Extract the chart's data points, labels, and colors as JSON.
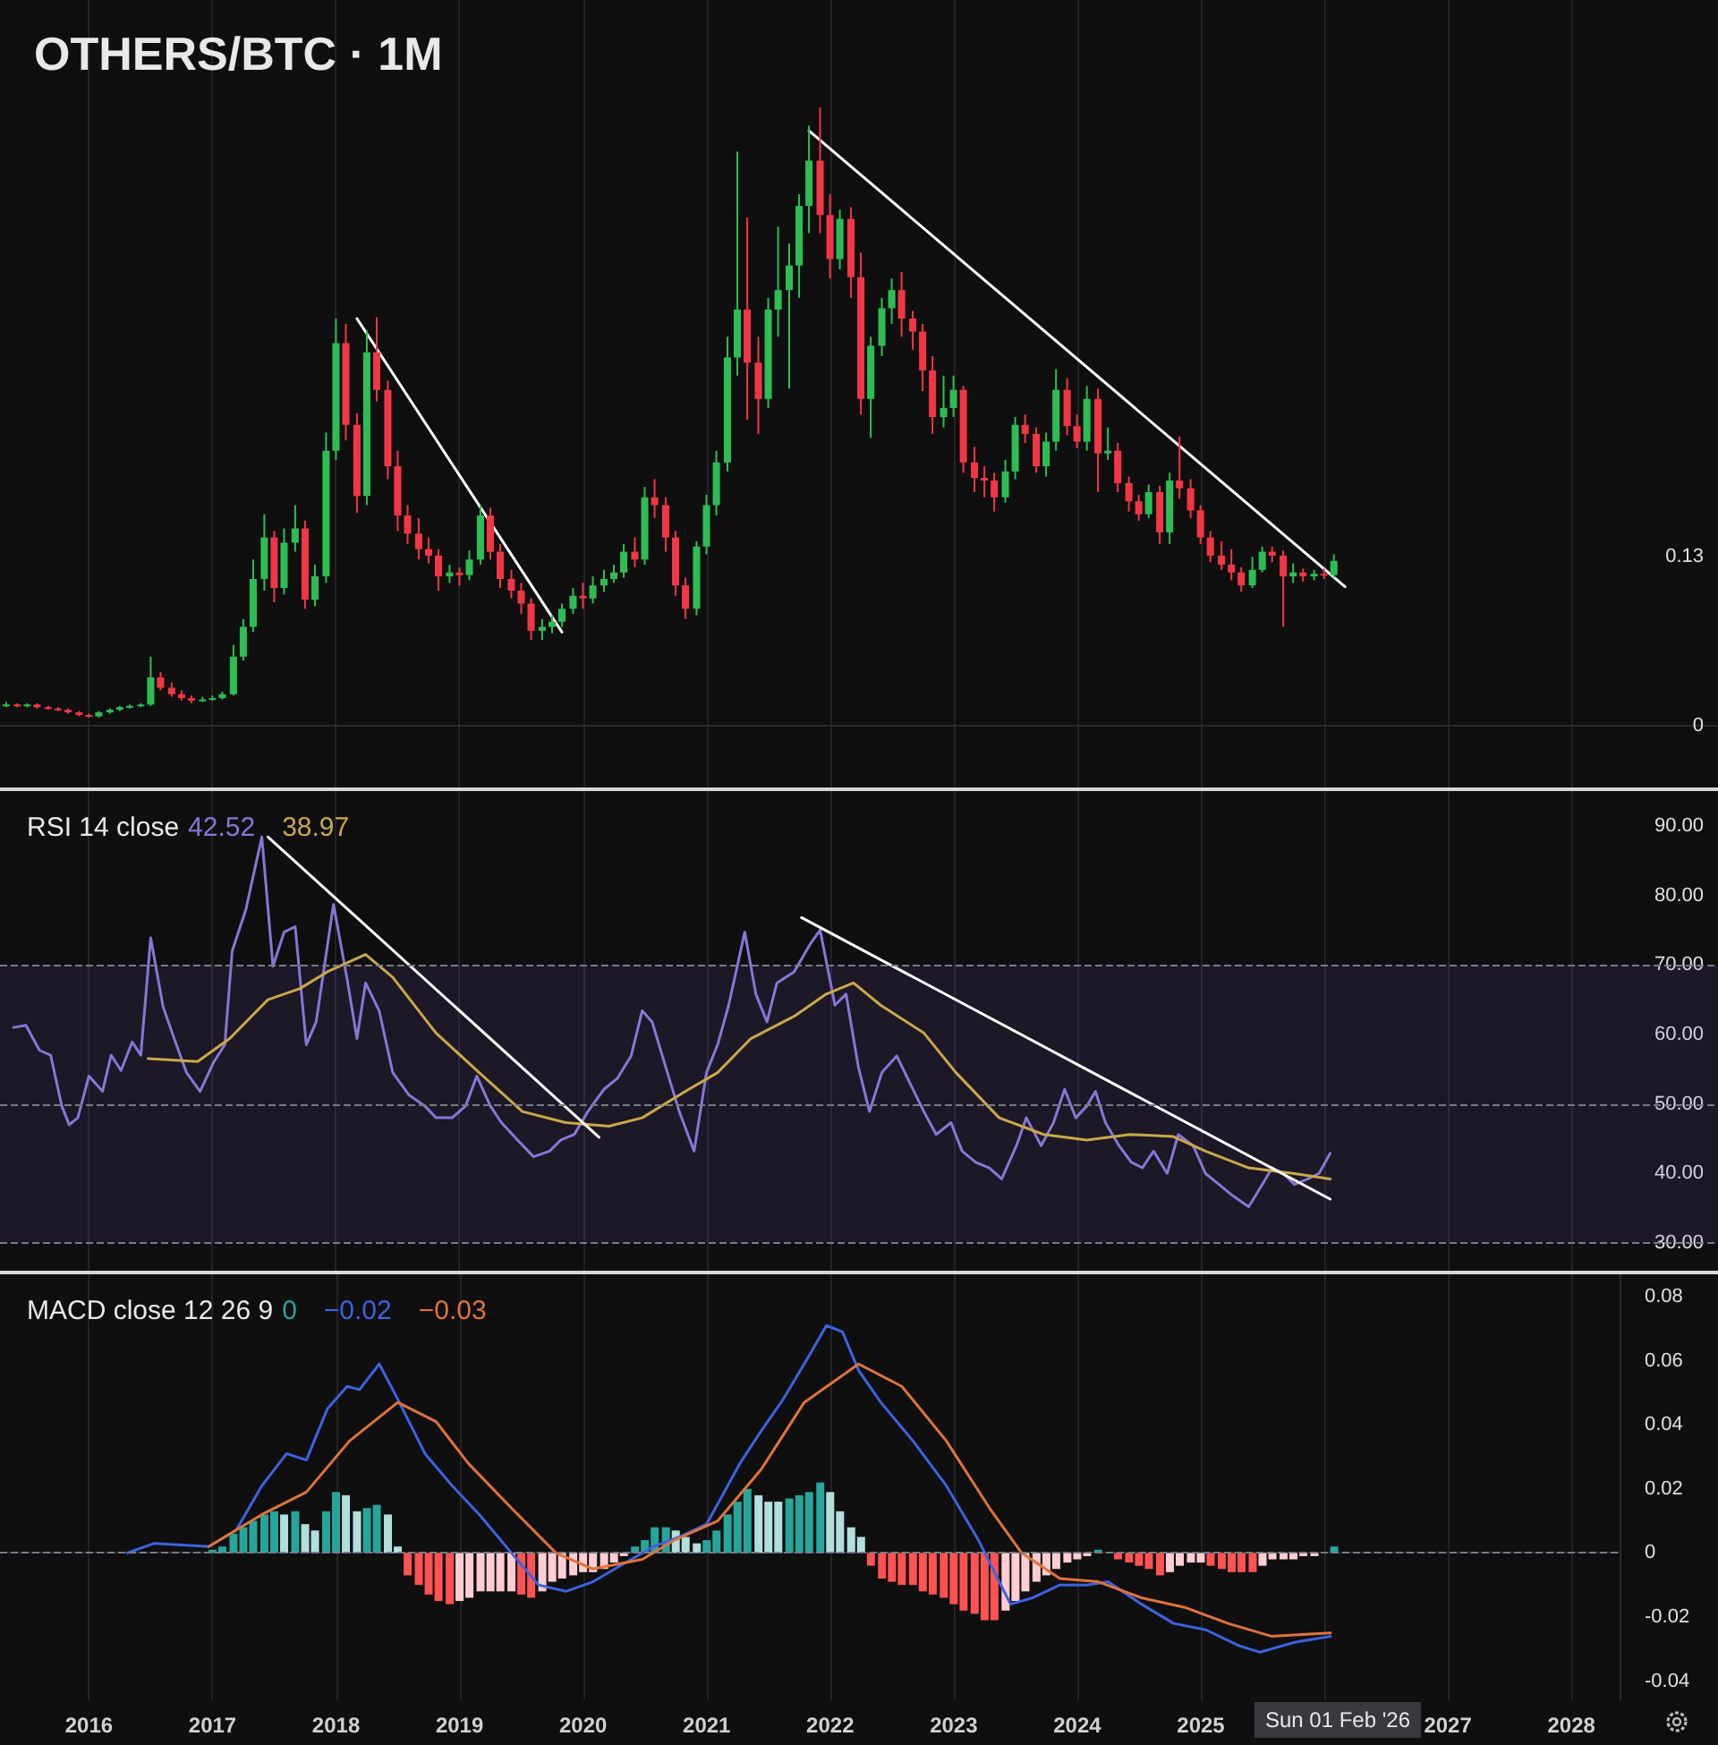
{
  "chart_data": [
    {
      "type": "candlestick",
      "title": "OTHERS/BTC · 1M",
      "xlim": [
        2015.28,
        2029.19
      ],
      "xticks": [
        2016,
        2017,
        2018,
        2019,
        2020,
        2021,
        2022,
        2023,
        2024,
        2025,
        2026,
        2027,
        2028
      ],
      "ylim": [
        -0.048,
        0.56
      ],
      "yticks": [
        0,
        0.13
      ],
      "tick_labels": "y",
      "grid": "x",
      "marker": "none",
      "x": [
        2015.33,
        2015.42,
        2015.5,
        2015.58,
        2015.67,
        2015.75,
        2015.83,
        2015.92,
        2016,
        2016.08,
        2016.17,
        2016.25,
        2016.33,
        2016.42,
        2016.5,
        2016.58,
        2016.67,
        2016.75,
        2016.83,
        2016.92,
        2017,
        2017.08,
        2017.17,
        2017.25,
        2017.33,
        2017.42,
        2017.5,
        2017.58,
        2017.67,
        2017.75,
        2017.83,
        2017.92,
        2018,
        2018.08,
        2018.17,
        2018.25,
        2018.33,
        2018.42,
        2018.5,
        2018.58,
        2018.67,
        2018.75,
        2018.83,
        2018.92,
        2019,
        2019.08,
        2019.17,
        2019.25,
        2019.33,
        2019.42,
        2019.5,
        2019.58,
        2019.67,
        2019.75,
        2019.83,
        2019.92,
        2020,
        2020.08,
        2020.17,
        2020.25,
        2020.33,
        2020.42,
        2020.5,
        2020.58,
        2020.67,
        2020.75,
        2020.83,
        2020.92,
        2021,
        2021.08,
        2021.17,
        2021.25,
        2021.33,
        2021.42,
        2021.5,
        2021.58,
        2021.67,
        2021.75,
        2021.83,
        2021.92,
        2022,
        2022.08,
        2022.17,
        2022.25,
        2022.33,
        2022.42,
        2022.5,
        2022.58,
        2022.67,
        2022.75,
        2022.83,
        2022.92,
        2023,
        2023.08,
        2023.17,
        2023.25,
        2023.33,
        2023.42,
        2023.5,
        2023.58,
        2023.67,
        2023.75,
        2023.83,
        2023.92,
        2024,
        2024.08,
        2024.17,
        2024.25,
        2024.33,
        2024.42,
        2024.5,
        2024.58,
        2024.67,
        2024.75,
        2024.83,
        2024.92,
        2025,
        2025.08,
        2025.17,
        2025.25,
        2025.33,
        2025.42,
        2025.5,
        2025.58,
        2025.67,
        2025.75,
        2025.83,
        2025.92,
        2026,
        2026.08
      ],
      "ohlc": [
        [
          0.015,
          0.018,
          0.014,
          0.016
        ],
        [
          0.016,
          0.017,
          0.014,
          0.015
        ],
        [
          0.015,
          0.017,
          0.014,
          0.016
        ],
        [
          0.016,
          0.017,
          0.013,
          0.014
        ],
        [
          0.014,
          0.015,
          0.012,
          0.013
        ],
        [
          0.013,
          0.014,
          0.011,
          0.012
        ],
        [
          0.012,
          0.013,
          0.009,
          0.01
        ],
        [
          0.01,
          0.011,
          0.007,
          0.008
        ],
        [
          0.008,
          0.009,
          0.006,
          0.007
        ],
        [
          0.007,
          0.011,
          0.006,
          0.01
        ],
        [
          0.01,
          0.013,
          0.009,
          0.012
        ],
        [
          0.012,
          0.015,
          0.011,
          0.014
        ],
        [
          0.014,
          0.016,
          0.013,
          0.015
        ],
        [
          0.015,
          0.017,
          0.014,
          0.016
        ],
        [
          0.016,
          0.053,
          0.015,
          0.037
        ],
        [
          0.037,
          0.041,
          0.027,
          0.029
        ],
        [
          0.029,
          0.033,
          0.022,
          0.024
        ],
        [
          0.024,
          0.027,
          0.019,
          0.021
        ],
        [
          0.021,
          0.023,
          0.017,
          0.019
        ],
        [
          0.019,
          0.022,
          0.018,
          0.02
        ],
        [
          0.02,
          0.023,
          0.019,
          0.021
        ],
        [
          0.021,
          0.026,
          0.02,
          0.024
        ],
        [
          0.024,
          0.062,
          0.023,
          0.053
        ],
        [
          0.053,
          0.082,
          0.05,
          0.076
        ],
        [
          0.076,
          0.128,
          0.072,
          0.113
        ],
        [
          0.113,
          0.163,
          0.104,
          0.145
        ],
        [
          0.145,
          0.15,
          0.095,
          0.106
        ],
        [
          0.106,
          0.152,
          0.101,
          0.141
        ],
        [
          0.141,
          0.17,
          0.134,
          0.152
        ],
        [
          0.152,
          0.158,
          0.09,
          0.097
        ],
        [
          0.097,
          0.124,
          0.092,
          0.115
        ],
        [
          0.115,
          0.226,
          0.11,
          0.212
        ],
        [
          0.212,
          0.314,
          0.205,
          0.295
        ],
        [
          0.295,
          0.31,
          0.22,
          0.232
        ],
        [
          0.232,
          0.241,
          0.164,
          0.177
        ],
        [
          0.177,
          0.305,
          0.17,
          0.288
        ],
        [
          0.288,
          0.315,
          0.25,
          0.259
        ],
        [
          0.259,
          0.266,
          0.19,
          0.2
        ],
        [
          0.2,
          0.212,
          0.15,
          0.162
        ],
        [
          0.162,
          0.17,
          0.14,
          0.148
        ],
        [
          0.148,
          0.16,
          0.128,
          0.136
        ],
        [
          0.136,
          0.145,
          0.125,
          0.131
        ],
        [
          0.131,
          0.136,
          0.104,
          0.115
        ],
        [
          0.115,
          0.124,
          0.11,
          0.118
        ],
        [
          0.118,
          0.122,
          0.108,
          0.116
        ],
        [
          0.116,
          0.135,
          0.112,
          0.128
        ],
        [
          0.128,
          0.17,
          0.124,
          0.162
        ],
        [
          0.162,
          0.168,
          0.128,
          0.134
        ],
        [
          0.134,
          0.14,
          0.106,
          0.113
        ],
        [
          0.113,
          0.12,
          0.098,
          0.104
        ],
        [
          0.104,
          0.11,
          0.086,
          0.094
        ],
        [
          0.094,
          0.098,
          0.066,
          0.073
        ],
        [
          0.073,
          0.082,
          0.066,
          0.076
        ],
        [
          0.076,
          0.085,
          0.071,
          0.08
        ],
        [
          0.08,
          0.094,
          0.076,
          0.09
        ],
        [
          0.09,
          0.106,
          0.086,
          0.1
        ],
        [
          0.1,
          0.11,
          0.09,
          0.098
        ],
        [
          0.098,
          0.115,
          0.094,
          0.108
        ],
        [
          0.108,
          0.12,
          0.103,
          0.113
        ],
        [
          0.113,
          0.124,
          0.11,
          0.118
        ],
        [
          0.118,
          0.14,
          0.114,
          0.134
        ],
        [
          0.134,
          0.145,
          0.122,
          0.128
        ],
        [
          0.128,
          0.184,
          0.124,
          0.176
        ],
        [
          0.176,
          0.19,
          0.16,
          0.17
        ],
        [
          0.17,
          0.176,
          0.134,
          0.145
        ],
        [
          0.145,
          0.15,
          0.1,
          0.108
        ],
        [
          0.108,
          0.114,
          0.082,
          0.09
        ],
        [
          0.09,
          0.142,
          0.085,
          0.138
        ],
        [
          0.138,
          0.178,
          0.132,
          0.17
        ],
        [
          0.17,
          0.212,
          0.162,
          0.203
        ],
        [
          0.203,
          0.3,
          0.196,
          0.284
        ],
        [
          0.284,
          0.443,
          0.27,
          0.321
        ],
        [
          0.321,
          0.392,
          0.236,
          0.28
        ],
        [
          0.28,
          0.3,
          0.225,
          0.252
        ],
        [
          0.252,
          0.33,
          0.245,
          0.321
        ],
        [
          0.321,
          0.385,
          0.3,
          0.336
        ],
        [
          0.336,
          0.372,
          0.26,
          0.355
        ],
        [
          0.355,
          0.41,
          0.33,
          0.401
        ],
        [
          0.401,
          0.463,
          0.38,
          0.436
        ],
        [
          0.436,
          0.477,
          0.38,
          0.394
        ],
        [
          0.394,
          0.41,
          0.345,
          0.36
        ],
        [
          0.36,
          0.398,
          0.352,
          0.391
        ],
        [
          0.391,
          0.4,
          0.33,
          0.346
        ],
        [
          0.346,
          0.365,
          0.24,
          0.252
        ],
        [
          0.252,
          0.3,
          0.222,
          0.293
        ],
        [
          0.293,
          0.33,
          0.285,
          0.322
        ],
        [
          0.322,
          0.345,
          0.31,
          0.336
        ],
        [
          0.336,
          0.35,
          0.3,
          0.314
        ],
        [
          0.314,
          0.32,
          0.29,
          0.304
        ],
        [
          0.304,
          0.31,
          0.258,
          0.274
        ],
        [
          0.274,
          0.285,
          0.225,
          0.238
        ],
        [
          0.238,
          0.27,
          0.23,
          0.245
        ],
        [
          0.245,
          0.27,
          0.238,
          0.259
        ],
        [
          0.259,
          0.262,
          0.195,
          0.203
        ],
        [
          0.203,
          0.215,
          0.18,
          0.191
        ],
        [
          0.191,
          0.2,
          0.176,
          0.189
        ],
        [
          0.189,
          0.195,
          0.165,
          0.176
        ],
        [
          0.176,
          0.205,
          0.172,
          0.196
        ],
        [
          0.196,
          0.238,
          0.19,
          0.232
        ],
        [
          0.232,
          0.24,
          0.218,
          0.225
        ],
        [
          0.225,
          0.23,
          0.195,
          0.2
        ],
        [
          0.2,
          0.226,
          0.192,
          0.219
        ],
        [
          0.219,
          0.275,
          0.212,
          0.259
        ],
        [
          0.259,
          0.268,
          0.224,
          0.231
        ],
        [
          0.231,
          0.24,
          0.214,
          0.219
        ],
        [
          0.219,
          0.262,
          0.212,
          0.252
        ],
        [
          0.252,
          0.26,
          0.18,
          0.21
        ],
        [
          0.21,
          0.23,
          0.205,
          0.212
        ],
        [
          0.212,
          0.218,
          0.18,
          0.187
        ],
        [
          0.187,
          0.192,
          0.165,
          0.173
        ],
        [
          0.173,
          0.178,
          0.158,
          0.163
        ],
        [
          0.163,
          0.186,
          0.16,
          0.18
        ],
        [
          0.18,
          0.185,
          0.14,
          0.149
        ],
        [
          0.149,
          0.195,
          0.14,
          0.189
        ],
        [
          0.189,
          0.223,
          0.175,
          0.183
        ],
        [
          0.183,
          0.19,
          0.16,
          0.166
        ],
        [
          0.166,
          0.17,
          0.14,
          0.145
        ],
        [
          0.145,
          0.15,
          0.126,
          0.131
        ],
        [
          0.131,
          0.142,
          0.12,
          0.124
        ],
        [
          0.124,
          0.136,
          0.112,
          0.118
        ],
        [
          0.118,
          0.122,
          0.103,
          0.108
        ],
        [
          0.108,
          0.13,
          0.106,
          0.12
        ],
        [
          0.12,
          0.138,
          0.118,
          0.134
        ],
        [
          0.134,
          0.138,
          0.126,
          0.131
        ],
        [
          0.131,
          0.135,
          0.076,
          0.115
        ],
        [
          0.115,
          0.125,
          0.11,
          0.118
        ],
        [
          0.118,
          0.121,
          0.111,
          0.115
        ],
        [
          0.115,
          0.12,
          0.112,
          0.117
        ],
        [
          0.117,
          0.121,
          0.113,
          0.116
        ],
        [
          0.116,
          0.132,
          0.114,
          0.127
        ]
      ],
      "colors": [
        "#2ebd55",
        "#f23645",
        "#2ebd55",
        "#f23645",
        "#f23645",
        "#f23645",
        "#f23645",
        "#f23645",
        "#f23645",
        "#2ebd55",
        "#2ebd55",
        "#2ebd55",
        "#2ebd55",
        "#2ebd55",
        "#2ebd55",
        "#f23645",
        "#f23645",
        "#f23645",
        "#f23645",
        "#2ebd55",
        "#2ebd55",
        "#2ebd55",
        "#2ebd55",
        "#2ebd55",
        "#2ebd55",
        "#2ebd55",
        "#f23645",
        "#2ebd55",
        "#2ebd55",
        "#f23645",
        "#2ebd55",
        "#2ebd55",
        "#2ebd55",
        "#f23645",
        "#f23645",
        "#2ebd55",
        "#f23645",
        "#f23645",
        "#f23645",
        "#f23645",
        "#f23645",
        "#f23645",
        "#f23645",
        "#2ebd55",
        "#f23645",
        "#2ebd55",
        "#2ebd55",
        "#f23645",
        "#f23645",
        "#f23645",
        "#f23645",
        "#f23645",
        "#2ebd55",
        "#2ebd55",
        "#2ebd55",
        "#2ebd55",
        "#f23645",
        "#2ebd55",
        "#2ebd55",
        "#2ebd55",
        "#2ebd55",
        "#f23645",
        "#2ebd55",
        "#f23645",
        "#f23645",
        "#f23645",
        "#f23645",
        "#2ebd55",
        "#2ebd55",
        "#2ebd55",
        "#2ebd55",
        "#2ebd55",
        "#f23645",
        "#f23645",
        "#2ebd55",
        "#2ebd55",
        "#2ebd55",
        "#2ebd55",
        "#2ebd55",
        "#f23645",
        "#f23645",
        "#2ebd55",
        "#f23645",
        "#f23645",
        "#2ebd55",
        "#2ebd55",
        "#2ebd55",
        "#f23645",
        "#f23645",
        "#f23645",
        "#f23645",
        "#2ebd55",
        "#2ebd55",
        "#f23645",
        "#f23645",
        "#f23645",
        "#f23645",
        "#2ebd55",
        "#2ebd55",
        "#f23645",
        "#f23645",
        "#2ebd55",
        "#2ebd55",
        "#f23645",
        "#f23645",
        "#2ebd55",
        "#f23645",
        "#2ebd55",
        "#f23645",
        "#f23645",
        "#f23645",
        "#2ebd55",
        "#f23645",
        "#2ebd55",
        "#f23645",
        "#f23645",
        "#f23645",
        "#f23645",
        "#f23645",
        "#f23645",
        "#f23645",
        "#2ebd55",
        "#2ebd55",
        "#f23645",
        "#f23645",
        "#2ebd55",
        "#f23645",
        "#2ebd55",
        "#f23645",
        "#2ebd55"
      ],
      "series": [
        {
          "type": "line",
          "color": "#ffffff",
          "x": [
            2018.17,
            2019.83
          ],
          "values": [
            0.314,
            0.072
          ]
        },
        {
          "type": "line",
          "color": "#ffffff",
          "x": [
            2021.83,
            2026.17
          ],
          "values": [
            0.459,
            0.107
          ]
        }
      ]
    },
    {
      "type": "line",
      "title": "RSI 14 close",
      "xlim": [
        2015.28,
        2029.19
      ],
      "xticks": [
        2016,
        2017,
        2018,
        2019,
        2020,
        2021,
        2022,
        2023,
        2024,
        2025,
        2026,
        2027,
        2028
      ],
      "ylim": [
        26,
        95
      ],
      "yticks": [
        {
          "value": 30,
          "label": "30.00"
        },
        {
          "value": 40,
          "label": "40.00"
        },
        {
          "value": 50,
          "label": "50.00"
        },
        {
          "value": 60,
          "label": "60.00"
        },
        {
          "value": 70,
          "label": "70.00"
        },
        {
          "value": 80,
          "label": "80.00"
        },
        {
          "value": 90,
          "label": "90.00"
        }
      ],
      "tick_labels": "y",
      "grid": "x",
      "marker": "none",
      "legend": "top left",
      "ref_lines": [
        {
          "axis": "y",
          "value": 70,
          "color": "#787b86",
          "line_style": "dashed"
        },
        {
          "axis": "y",
          "value": 50,
          "color": "#787b86",
          "line_style": "dashed"
        },
        {
          "axis": "y",
          "value": 30,
          "color": "#787b86",
          "line_style": "dashed"
        }
      ],
      "bands": [
        {
          "axis": "y",
          "from": 30,
          "to": 70,
          "color": "#7e57c2"
        }
      ],
      "series": [
        {
          "name": "42.52",
          "color": "#8677d6",
          "x": [
            2015.39,
            2015.49,
            2015.6,
            2015.69,
            2015.78,
            2015.84,
            2015.91,
            2016,
            2016.11,
            2016.18,
            2016.26,
            2016.35,
            2016.42,
            2016.5,
            2016.6,
            2016.69,
            2016.79,
            2016.9,
            2017.01,
            2017.1,
            2017.16,
            2017.27,
            2017.4,
            2017.49,
            2017.58,
            2017.67,
            2017.76,
            2017.84,
            2017.98,
            2018.09,
            2018.17,
            2018.24,
            2018.35,
            2018.46,
            2018.59,
            2018.72,
            2018.81,
            2018.94,
            2019.05,
            2019.14,
            2019.25,
            2019.34,
            2019.47,
            2019.6,
            2019.73,
            2019.82,
            2019.93,
            2020.04,
            2020.17,
            2020.28,
            2020.39,
            2020.48,
            2020.56,
            2020.67,
            2020.78,
            2020.9,
            2021,
            2021.09,
            2021.18,
            2021.31,
            2021.4,
            2021.49,
            2021.57,
            2021.71,
            2021.84,
            2021.92,
            2022.04,
            2022.13,
            2022.23,
            2022.32,
            2022.42,
            2022.54,
            2022.65,
            2022.76,
            2022.86,
            2022.98,
            2023.07,
            2023.18,
            2023.29,
            2023.39,
            2023.51,
            2023.59,
            2023.71,
            2023.81,
            2023.9,
            2023.99,
            2024.08,
            2024.15,
            2024.23,
            2024.34,
            2024.44,
            2024.53,
            2024.62,
            2024.73,
            2024.82,
            2024.94,
            2025.04,
            2025.15,
            2025.26,
            2025.39,
            2025.5,
            2025.58,
            2025.67,
            2025.76,
            2025.87,
            2025.96,
            2026.05
          ],
          "values": [
            61,
            61.3,
            57.7,
            57,
            49.7,
            47,
            48,
            54,
            51.8,
            57,
            54.8,
            58.9,
            57,
            73.9,
            64,
            59.4,
            54.5,
            51.8,
            56,
            58.5,
            72,
            77.9,
            88.4,
            69.8,
            74.7,
            75.5,
            58.5,
            61.8,
            78.7,
            68,
            59.4,
            67.4,
            63.4,
            54.5,
            51.3,
            49.7,
            48,
            48,
            49.7,
            54,
            49.7,
            47.3,
            44.8,
            42.4,
            43.2,
            44.8,
            45.6,
            48.9,
            52.1,
            53.7,
            56.9,
            63.4,
            61.8,
            55.3,
            48.9,
            43.2,
            54.5,
            58.5,
            64.2,
            74.7,
            65.8,
            61.8,
            67.4,
            69,
            73,
            75,
            64.2,
            65.8,
            55.3,
            48.9,
            54.5,
            56.9,
            52.9,
            48.9,
            45.6,
            47.3,
            43.2,
            41.6,
            40.8,
            39.2,
            44,
            48,
            44,
            47.3,
            52.1,
            48,
            49.7,
            51.8,
            47.3,
            44,
            41.6,
            40.8,
            43.2,
            40,
            45.6,
            44,
            40,
            38.4,
            36.8,
            35.2,
            38.4,
            40.8,
            40,
            38.4,
            39.2,
            40,
            42.9
          ]
        },
        {
          "name": "38.97",
          "color": "#c9a94a",
          "x": [
            2016.48,
            2016.88,
            2017.14,
            2017.45,
            2017.71,
            2017.93,
            2018.24,
            2018.46,
            2018.81,
            2019.16,
            2019.51,
            2019.86,
            2020.21,
            2020.48,
            2020.83,
            2021.09,
            2021.36,
            2021.71,
            2021.97,
            2022.19,
            2022.41,
            2022.76,
            2023.02,
            2023.37,
            2023.73,
            2024.08,
            2024.43,
            2024.78,
            2025.04,
            2025.39,
            2025.75,
            2026.05
          ],
          "values": [
            56.5,
            56.1,
            59.4,
            65,
            66.6,
            69,
            71.5,
            68.2,
            60.2,
            54.5,
            48.9,
            47.3,
            46.8,
            48,
            51.8,
            54.5,
            59.4,
            62.6,
            65.8,
            67.4,
            64.2,
            60.2,
            54.5,
            48,
            45.6,
            44.8,
            45.6,
            45.3,
            43.2,
            40.8,
            40,
            39.2
          ]
        },
        {
          "color": "#ffffff",
          "x": [
            2017.45,
            2020.13
          ],
          "values": [
            88.4,
            45.2
          ]
        },
        {
          "color": "#ffffff",
          "x": [
            2021.77,
            2026.05
          ],
          "values": [
            76.8,
            36.3
          ]
        }
      ]
    },
    {
      "type": "bar",
      "title": "MACD close 12 26 9",
      "xlim": [
        2015.28,
        2028.39
      ],
      "xticks": [
        2016,
        2017,
        2018,
        2019,
        2020,
        2021,
        2022,
        2023,
        2024,
        2025,
        {
          "value": 2026,
          "label": null
        },
        2027,
        2028
      ],
      "ylim": [
        -0.046,
        0.087
      ],
      "yticks": [
        -0.04,
        -0.02,
        0,
        0.02,
        0.04,
        0.06,
        0.08
      ],
      "grid": "x",
      "marker": "none",
      "legend": "top left",
      "ref_lines": [
        {
          "axis": "y",
          "value": 0,
          "color": "#787b86",
          "line_style": "dashed"
        }
      ],
      "annotations": [
        "Sun 01 Feb '26"
      ],
      "series": [
        {
          "name": "0",
          "color": "#26a69a",
          "x": [
            2017,
            2017.08,
            2017.17,
            2017.25,
            2017.33,
            2017.42,
            2017.5,
            2017.58,
            2017.67,
            2017.75,
            2017.83,
            2017.92,
            2018,
            2018.08,
            2018.17,
            2018.25,
            2018.33,
            2018.42,
            2018.5,
            2018.58,
            2018.67,
            2018.75,
            2018.83,
            2018.92,
            2019,
            2019.08,
            2019.17,
            2019.25,
            2019.33,
            2019.42,
            2019.5,
            2019.58,
            2019.67,
            2019.75,
            2019.83,
            2019.92,
            2020,
            2020.08,
            2020.17,
            2020.25,
            2020.33,
            2020.42,
            2020.5,
            2020.58,
            2020.67,
            2020.75,
            2020.83,
            2020.92,
            2021,
            2021.08,
            2021.17,
            2021.25,
            2021.33,
            2021.42,
            2021.5,
            2021.58,
            2021.67,
            2021.75,
            2021.83,
            2021.92,
            2022,
            2022.08,
            2022.17,
            2022.25,
            2022.33,
            2022.42,
            2022.5,
            2022.58,
            2022.67,
            2022.75,
            2022.83,
            2022.92,
            2023,
            2023.08,
            2023.17,
            2023.25,
            2023.33,
            2023.42,
            2023.5,
            2023.58,
            2023.67,
            2023.75,
            2023.83,
            2023.92,
            2024,
            2024.08,
            2024.17,
            2024.25,
            2024.33,
            2024.42,
            2024.5,
            2024.58,
            2024.67,
            2024.75,
            2024.83,
            2024.92,
            2025,
            2025.08,
            2025.17,
            2025.25,
            2025.33,
            2025.42,
            2025.5,
            2025.58,
            2025.67,
            2025.75,
            2025.83,
            2025.92,
            2026,
            2026.08
          ],
          "values": [
            0.001,
            0.002,
            0.006,
            0.008,
            0.01,
            0.012,
            0.013,
            0.012,
            0.013,
            0.009,
            0.007,
            0.013,
            0.019,
            0.018,
            0.013,
            0.014,
            0.015,
            0.012,
            0.002,
            -0.007,
            -0.01,
            -0.013,
            -0.015,
            -0.016,
            -0.015,
            -0.014,
            -0.012,
            -0.012,
            -0.012,
            -0.012,
            -0.013,
            -0.014,
            -0.012,
            -0.009,
            -0.008,
            -0.007,
            -0.006,
            -0.006,
            -0.005,
            -0.003,
            -0.001,
            0.002,
            0.004,
            0.008,
            0.008,
            0.007,
            0.005,
            0.003,
            0.004,
            0.007,
            0.012,
            0.016,
            0.02,
            0.018,
            0.016,
            0.016,
            0.017,
            0.018,
            0.019,
            0.022,
            0.019,
            0.013,
            0.008,
            0.005,
            -0.004,
            -0.008,
            -0.009,
            -0.01,
            -0.01,
            -0.012,
            -0.013,
            -0.014,
            -0.016,
            -0.018,
            -0.019,
            -0.021,
            -0.021,
            -0.018,
            -0.015,
            -0.012,
            -0.009,
            -0.007,
            -0.005,
            -0.003,
            -0.002,
            -0.001,
            0.001,
            0,
            -0.002,
            -0.003,
            -0.004,
            -0.005,
            -0.007,
            -0.006,
            -0.004,
            -0.003,
            -0.003,
            -0.004,
            -0.005,
            -0.006,
            -0.006,
            -0.006,
            -0.004,
            -0.002,
            -0.002,
            -0.002,
            -0.001,
            -0.001,
            0,
            0.002
          ],
          "colors": [
            "#26a69a",
            "#26a69a",
            "#26a69a",
            "#26a69a",
            "#26a69a",
            "#26a69a",
            "#26a69a",
            "#b2dfdb",
            "#26a69a",
            "#b2dfdb",
            "#b2dfdb",
            "#26a69a",
            "#26a69a",
            "#b2dfdb",
            "#b2dfdb",
            "#26a69a",
            "#26a69a",
            "#b2dfdb",
            "#b2dfdb",
            "#ff5252",
            "#ff5252",
            "#ff5252",
            "#ff5252",
            "#ff5252",
            "#ffcdd2",
            "#ffcdd2",
            "#ffcdd2",
            "#ffcdd2",
            "#ffcdd2",
            "#ffcdd2",
            "#ff5252",
            "#ff5252",
            "#ffcdd2",
            "#ffcdd2",
            "#ffcdd2",
            "#ffcdd2",
            "#ffcdd2",
            "#ffcdd2",
            "#ffcdd2",
            "#ffcdd2",
            "#ffcdd2",
            "#26a69a",
            "#26a69a",
            "#26a69a",
            "#26a69a",
            "#b2dfdb",
            "#b2dfdb",
            "#b2dfdb",
            "#26a69a",
            "#26a69a",
            "#26a69a",
            "#26a69a",
            "#26a69a",
            "#b2dfdb",
            "#b2dfdb",
            "#b2dfdb",
            "#26a69a",
            "#26a69a",
            "#26a69a",
            "#26a69a",
            "#b2dfdb",
            "#b2dfdb",
            "#b2dfdb",
            "#b2dfdb",
            "#ff5252",
            "#ff5252",
            "#ff5252",
            "#ff5252",
            "#ff5252",
            "#ff5252",
            "#ff5252",
            "#ff5252",
            "#ff5252",
            "#ff5252",
            "#ff5252",
            "#ff5252",
            "#ff5252",
            "#ffcdd2",
            "#ffcdd2",
            "#ffcdd2",
            "#ffcdd2",
            "#ffcdd2",
            "#ffcdd2",
            "#ffcdd2",
            "#ffcdd2",
            "#ffcdd2",
            "#26a69a",
            "#b2dfdb",
            "#ff5252",
            "#ff5252",
            "#ff5252",
            "#ff5252",
            "#ff5252",
            "#ffcdd2",
            "#ffcdd2",
            "#ffcdd2",
            "#ffcdd2",
            "#ff5252",
            "#ff5252",
            "#ff5252",
            "#ff5252",
            "#ff5252",
            "#ffcdd2",
            "#ffcdd2",
            "#ffcdd2",
            "#ffcdd2",
            "#ffcdd2",
            "#ffcdd2",
            "#ffcdd2",
            "#26a69a"
          ]
        },
        {
          "name": "−0.02",
          "type": "line",
          "color": "#3d63e0",
          "x": [
            2016.31,
            2016.53,
            2016.97,
            2017.19,
            2017.4,
            2017.6,
            2017.76,
            2017.93,
            2018.09,
            2018.19,
            2018.35,
            2018.5,
            2018.72,
            2018.94,
            2019.16,
            2019.42,
            2019.64,
            2019.86,
            2020.08,
            2020.3,
            2020.57,
            2020.78,
            2021,
            2021.27,
            2021.44,
            2021.62,
            2021.79,
            2021.97,
            2022.1,
            2022.23,
            2022.41,
            2022.67,
            2022.94,
            2023.2,
            2023.46,
            2023.64,
            2023.86,
            2024.08,
            2024.25,
            2024.52,
            2024.78,
            2025.04,
            2025.31,
            2025.48,
            2025.75,
            2026.05
          ],
          "values": [
            0,
            0.003,
            0.002,
            0.007,
            0.021,
            0.031,
            0.029,
            0.045,
            0.052,
            0.051,
            0.059,
            0.048,
            0.031,
            0.021,
            0.012,
            0,
            -0.01,
            -0.012,
            -0.009,
            -0.004,
            0.002,
            0.005,
            0.009,
            0.028,
            0.038,
            0.048,
            0.059,
            0.071,
            0.069,
            0.057,
            0.047,
            0.035,
            0.021,
            0.004,
            -0.016,
            -0.014,
            -0.01,
            -0.01,
            -0.009,
            -0.016,
            -0.022,
            -0.024,
            -0.029,
            -0.031,
            -0.028,
            -0.026
          ]
        },
        {
          "name": "−0.03",
          "type": "line",
          "color": "#e0733a",
          "x": [
            2016.97,
            2017.4,
            2017.76,
            2018.11,
            2018.5,
            2018.81,
            2019.07,
            2019.42,
            2019.78,
            2020.08,
            2020.48,
            2020.74,
            2021.09,
            2021.44,
            2021.79,
            2022.23,
            2022.58,
            2022.94,
            2023.29,
            2023.55,
            2023.86,
            2024.17,
            2024.52,
            2024.87,
            2025.22,
            2025.57,
            2026.05
          ],
          "values": [
            0.002,
            0.012,
            0.019,
            0.035,
            0.047,
            0.041,
            0.028,
            0.014,
            0,
            -0.005,
            -0.002,
            0.004,
            0.01,
            0.026,
            0.047,
            0.059,
            0.052,
            0.035,
            0.014,
            0,
            -0.008,
            -0.009,
            -0.014,
            -0.017,
            -0.022,
            -0.026,
            -0.025
          ]
        }
      ]
    }
  ]
}
